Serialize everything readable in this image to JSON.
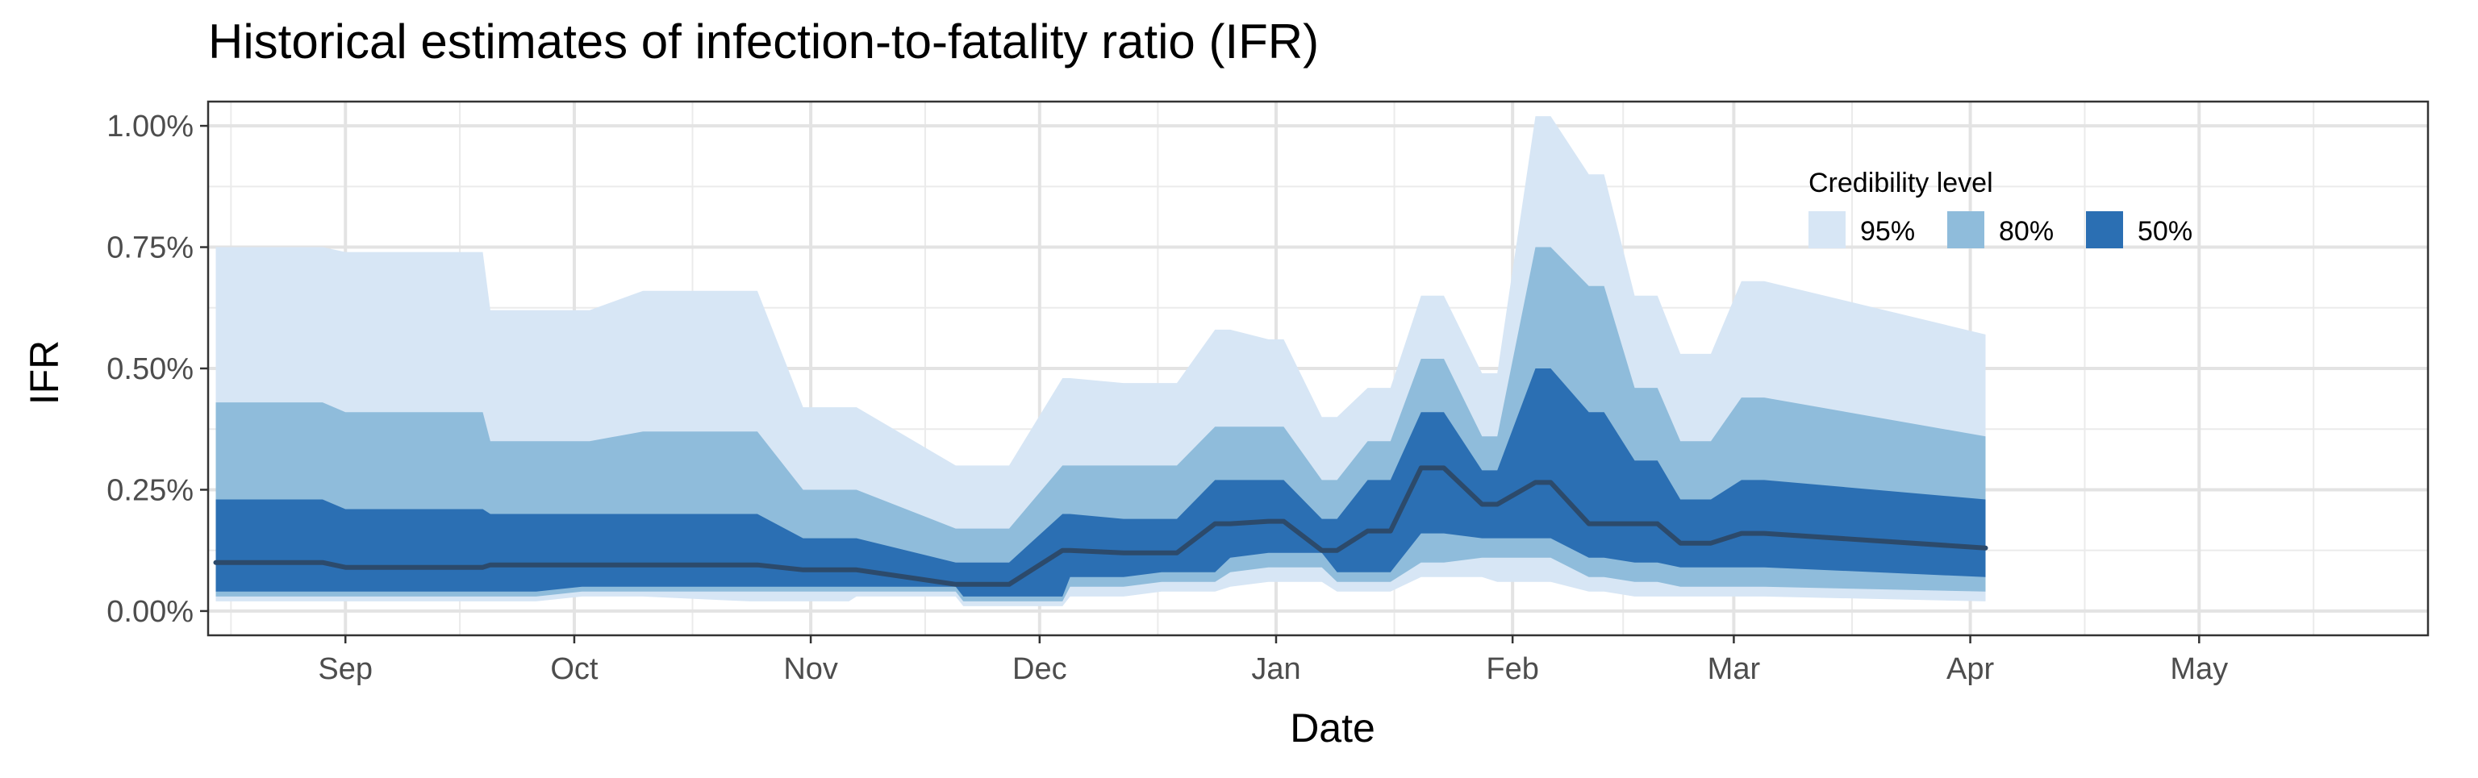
{
  "chart_data": {
    "type": "area",
    "title": "Historical estimates of infection-to-fatality ratio (IFR)",
    "xlabel": "Date",
    "ylabel": "IFR",
    "x_axis": {
      "type": "date",
      "range": [
        "2023-08-14",
        "2024-05-31"
      ],
      "ticks": [
        {
          "date": "2023-09-01",
          "label": "Sep"
        },
        {
          "date": "2023-10-01",
          "label": "Oct"
        },
        {
          "date": "2023-11-01",
          "label": "Nov"
        },
        {
          "date": "2023-12-01",
          "label": "Dec"
        },
        {
          "date": "2024-01-01",
          "label": "Jan"
        },
        {
          "date": "2024-02-01",
          "label": "Feb"
        },
        {
          "date": "2024-03-01",
          "label": "Mar"
        },
        {
          "date": "2024-04-01",
          "label": "Apr"
        },
        {
          "date": "2024-05-01",
          "label": "May"
        }
      ]
    },
    "y_axis": {
      "unit": "%",
      "range": [
        -0.05,
        1.05
      ],
      "ticks": [
        {
          "value": 0.0,
          "label": "0.00%"
        },
        {
          "value": 0.25,
          "label": "0.25%"
        },
        {
          "value": 0.5,
          "label": "0.50%"
        },
        {
          "value": 0.75,
          "label": "0.75%"
        },
        {
          "value": 1.0,
          "label": "1.00%"
        }
      ]
    },
    "grid": true,
    "legend": {
      "title": "Credibility level",
      "placement": "top-right",
      "items": [
        {
          "label": "95%",
          "color": "#d7e6f5"
        },
        {
          "label": "80%",
          "color": "#8fbcdb"
        },
        {
          "label": "50%",
          "color": "#2b6fb3"
        }
      ]
    },
    "line_color": "#2c4a6b",
    "series": [
      {
        "name": "95%",
        "color": "#d7e6f5",
        "x": [
          "2023-08-15",
          "2023-08-29",
          "2023-09-01",
          "2023-09-12",
          "2023-09-19",
          "2023-09-20",
          "2023-09-26",
          "2023-10-02",
          "2023-10-03",
          "2023-10-10",
          "2023-10-24",
          "2023-10-25",
          "2023-10-31",
          "2023-11-06",
          "2023-11-07",
          "2023-11-20",
          "2023-11-21",
          "2023-11-27",
          "2023-12-04",
          "2023-12-05",
          "2023-12-12",
          "2023-12-17",
          "2023-12-19",
          "2023-12-24",
          "2023-12-26",
          "2023-12-31",
          "2024-01-02",
          "2024-01-07",
          "2024-01-09",
          "2024-01-13",
          "2024-01-16",
          "2024-01-20",
          "2024-01-23",
          "2024-01-28",
          "2024-01-30",
          "2024-02-04",
          "2024-02-06",
          "2024-02-11",
          "2024-02-13",
          "2024-02-17",
          "2024-02-20",
          "2024-02-23",
          "2024-02-27",
          "2024-03-02",
          "2024-03-05",
          "2024-04-03"
        ],
        "upper": [
          0.75,
          0.75,
          0.74,
          0.74,
          0.74,
          0.62,
          0.62,
          0.62,
          0.62,
          0.66,
          0.66,
          0.66,
          0.42,
          0.42,
          0.42,
          0.3,
          0.3,
          0.3,
          0.48,
          0.48,
          0.47,
          0.47,
          0.47,
          0.58,
          0.58,
          0.56,
          0.56,
          0.4,
          0.4,
          0.46,
          0.46,
          0.65,
          0.65,
          0.49,
          0.49,
          1.02,
          1.02,
          0.9,
          0.9,
          0.65,
          0.65,
          0.53,
          0.53,
          0.68,
          0.68,
          0.57
        ],
        "lower": [
          0.02,
          0.02,
          0.02,
          0.02,
          0.02,
          0.02,
          0.02,
          0.03,
          0.03,
          0.03,
          0.02,
          0.02,
          0.02,
          0.02,
          0.03,
          0.03,
          0.01,
          0.01,
          0.01,
          0.03,
          0.03,
          0.04,
          0.04,
          0.04,
          0.05,
          0.06,
          0.06,
          0.06,
          0.04,
          0.04,
          0.04,
          0.07,
          0.07,
          0.07,
          0.06,
          0.06,
          0.06,
          0.04,
          0.04,
          0.03,
          0.03,
          0.03,
          0.03,
          0.03,
          0.03,
          0.02
        ]
      },
      {
        "name": "80%",
        "color": "#8fbcdb",
        "x": [
          "2023-08-15",
          "2023-08-29",
          "2023-09-01",
          "2023-09-12",
          "2023-09-19",
          "2023-09-20",
          "2023-09-26",
          "2023-10-02",
          "2023-10-03",
          "2023-10-10",
          "2023-10-24",
          "2023-10-25",
          "2023-10-31",
          "2023-11-06",
          "2023-11-07",
          "2023-11-20",
          "2023-11-21",
          "2023-11-27",
          "2023-12-04",
          "2023-12-05",
          "2023-12-12",
          "2023-12-17",
          "2023-12-19",
          "2023-12-24",
          "2023-12-26",
          "2023-12-31",
          "2024-01-02",
          "2024-01-07",
          "2024-01-09",
          "2024-01-13",
          "2024-01-16",
          "2024-01-20",
          "2024-01-23",
          "2024-01-28",
          "2024-01-30",
          "2024-02-04",
          "2024-02-06",
          "2024-02-11",
          "2024-02-13",
          "2024-02-17",
          "2024-02-20",
          "2024-02-23",
          "2024-02-27",
          "2024-03-02",
          "2024-03-05",
          "2024-04-03"
        ],
        "upper": [
          0.43,
          0.43,
          0.41,
          0.41,
          0.41,
          0.35,
          0.35,
          0.35,
          0.35,
          0.37,
          0.37,
          0.37,
          0.25,
          0.25,
          0.25,
          0.17,
          0.17,
          0.17,
          0.3,
          0.3,
          0.3,
          0.3,
          0.3,
          0.38,
          0.38,
          0.38,
          0.38,
          0.27,
          0.27,
          0.35,
          0.35,
          0.52,
          0.52,
          0.36,
          0.36,
          0.75,
          0.75,
          0.67,
          0.67,
          0.46,
          0.46,
          0.35,
          0.35,
          0.44,
          0.44,
          0.36
        ],
        "lower": [
          0.03,
          0.03,
          0.03,
          0.03,
          0.03,
          0.03,
          0.03,
          0.04,
          0.04,
          0.04,
          0.04,
          0.04,
          0.04,
          0.04,
          0.04,
          0.04,
          0.02,
          0.02,
          0.02,
          0.05,
          0.05,
          0.06,
          0.06,
          0.06,
          0.08,
          0.09,
          0.09,
          0.09,
          0.06,
          0.06,
          0.06,
          0.1,
          0.1,
          0.11,
          0.11,
          0.11,
          0.11,
          0.07,
          0.07,
          0.06,
          0.06,
          0.05,
          0.05,
          0.05,
          0.05,
          0.04
        ]
      },
      {
        "name": "50%",
        "color": "#2b6fb3",
        "x": [
          "2023-08-15",
          "2023-08-29",
          "2023-09-01",
          "2023-09-12",
          "2023-09-19",
          "2023-09-20",
          "2023-09-26",
          "2023-10-02",
          "2023-10-03",
          "2023-10-10",
          "2023-10-24",
          "2023-10-25",
          "2023-10-31",
          "2023-11-06",
          "2023-11-07",
          "2023-11-20",
          "2023-11-21",
          "2023-11-27",
          "2023-12-04",
          "2023-12-05",
          "2023-12-12",
          "2023-12-17",
          "2023-12-19",
          "2023-12-24",
          "2023-12-26",
          "2023-12-31",
          "2024-01-02",
          "2024-01-07",
          "2024-01-09",
          "2024-01-13",
          "2024-01-16",
          "2024-01-20",
          "2024-01-23",
          "2024-01-28",
          "2024-01-30",
          "2024-02-04",
          "2024-02-06",
          "2024-02-11",
          "2024-02-13",
          "2024-02-17",
          "2024-02-20",
          "2024-02-23",
          "2024-02-27",
          "2024-03-02",
          "2024-03-05",
          "2024-04-03"
        ],
        "upper": [
          0.23,
          0.23,
          0.21,
          0.21,
          0.21,
          0.2,
          0.2,
          0.2,
          0.2,
          0.2,
          0.2,
          0.2,
          0.15,
          0.15,
          0.15,
          0.1,
          0.1,
          0.1,
          0.2,
          0.2,
          0.19,
          0.19,
          0.19,
          0.27,
          0.27,
          0.27,
          0.27,
          0.19,
          0.19,
          0.27,
          0.27,
          0.41,
          0.41,
          0.29,
          0.29,
          0.5,
          0.5,
          0.41,
          0.41,
          0.31,
          0.31,
          0.23,
          0.23,
          0.27,
          0.27,
          0.23
        ],
        "lower": [
          0.04,
          0.04,
          0.04,
          0.04,
          0.04,
          0.04,
          0.04,
          0.05,
          0.05,
          0.05,
          0.05,
          0.05,
          0.05,
          0.05,
          0.05,
          0.05,
          0.03,
          0.03,
          0.03,
          0.07,
          0.07,
          0.08,
          0.08,
          0.08,
          0.11,
          0.12,
          0.12,
          0.12,
          0.08,
          0.08,
          0.08,
          0.16,
          0.16,
          0.15,
          0.15,
          0.15,
          0.15,
          0.11,
          0.11,
          0.1,
          0.1,
          0.09,
          0.09,
          0.09,
          0.09,
          0.07
        ]
      }
    ],
    "median_line": {
      "x": [
        "2023-08-15",
        "2023-08-29",
        "2023-09-01",
        "2023-09-12",
        "2023-09-19",
        "2023-09-20",
        "2023-09-26",
        "2023-10-02",
        "2023-10-03",
        "2023-10-10",
        "2023-10-24",
        "2023-10-25",
        "2023-10-31",
        "2023-11-06",
        "2023-11-07",
        "2023-11-20",
        "2023-11-21",
        "2023-11-27",
        "2023-12-04",
        "2023-12-05",
        "2023-12-12",
        "2023-12-17",
        "2023-12-19",
        "2023-12-24",
        "2023-12-26",
        "2023-12-31",
        "2024-01-02",
        "2024-01-07",
        "2024-01-09",
        "2024-01-13",
        "2024-01-16",
        "2024-01-20",
        "2024-01-23",
        "2024-01-28",
        "2024-01-30",
        "2024-02-04",
        "2024-02-06",
        "2024-02-11",
        "2024-02-13",
        "2024-02-17",
        "2024-02-20",
        "2024-02-23",
        "2024-02-27",
        "2024-03-02",
        "2024-03-05",
        "2024-04-03"
      ],
      "y": [
        0.1,
        0.1,
        0.09,
        0.09,
        0.09,
        0.095,
        0.095,
        0.095,
        0.095,
        0.095,
        0.095,
        0.095,
        0.085,
        0.085,
        0.085,
        0.055,
        0.055,
        0.055,
        0.125,
        0.125,
        0.12,
        0.12,
        0.12,
        0.18,
        0.18,
        0.185,
        0.185,
        0.125,
        0.125,
        0.165,
        0.165,
        0.295,
        0.295,
        0.22,
        0.22,
        0.265,
        0.265,
        0.18,
        0.18,
        0.18,
        0.18,
        0.14,
        0.14,
        0.16,
        0.16,
        0.13
      ]
    }
  }
}
